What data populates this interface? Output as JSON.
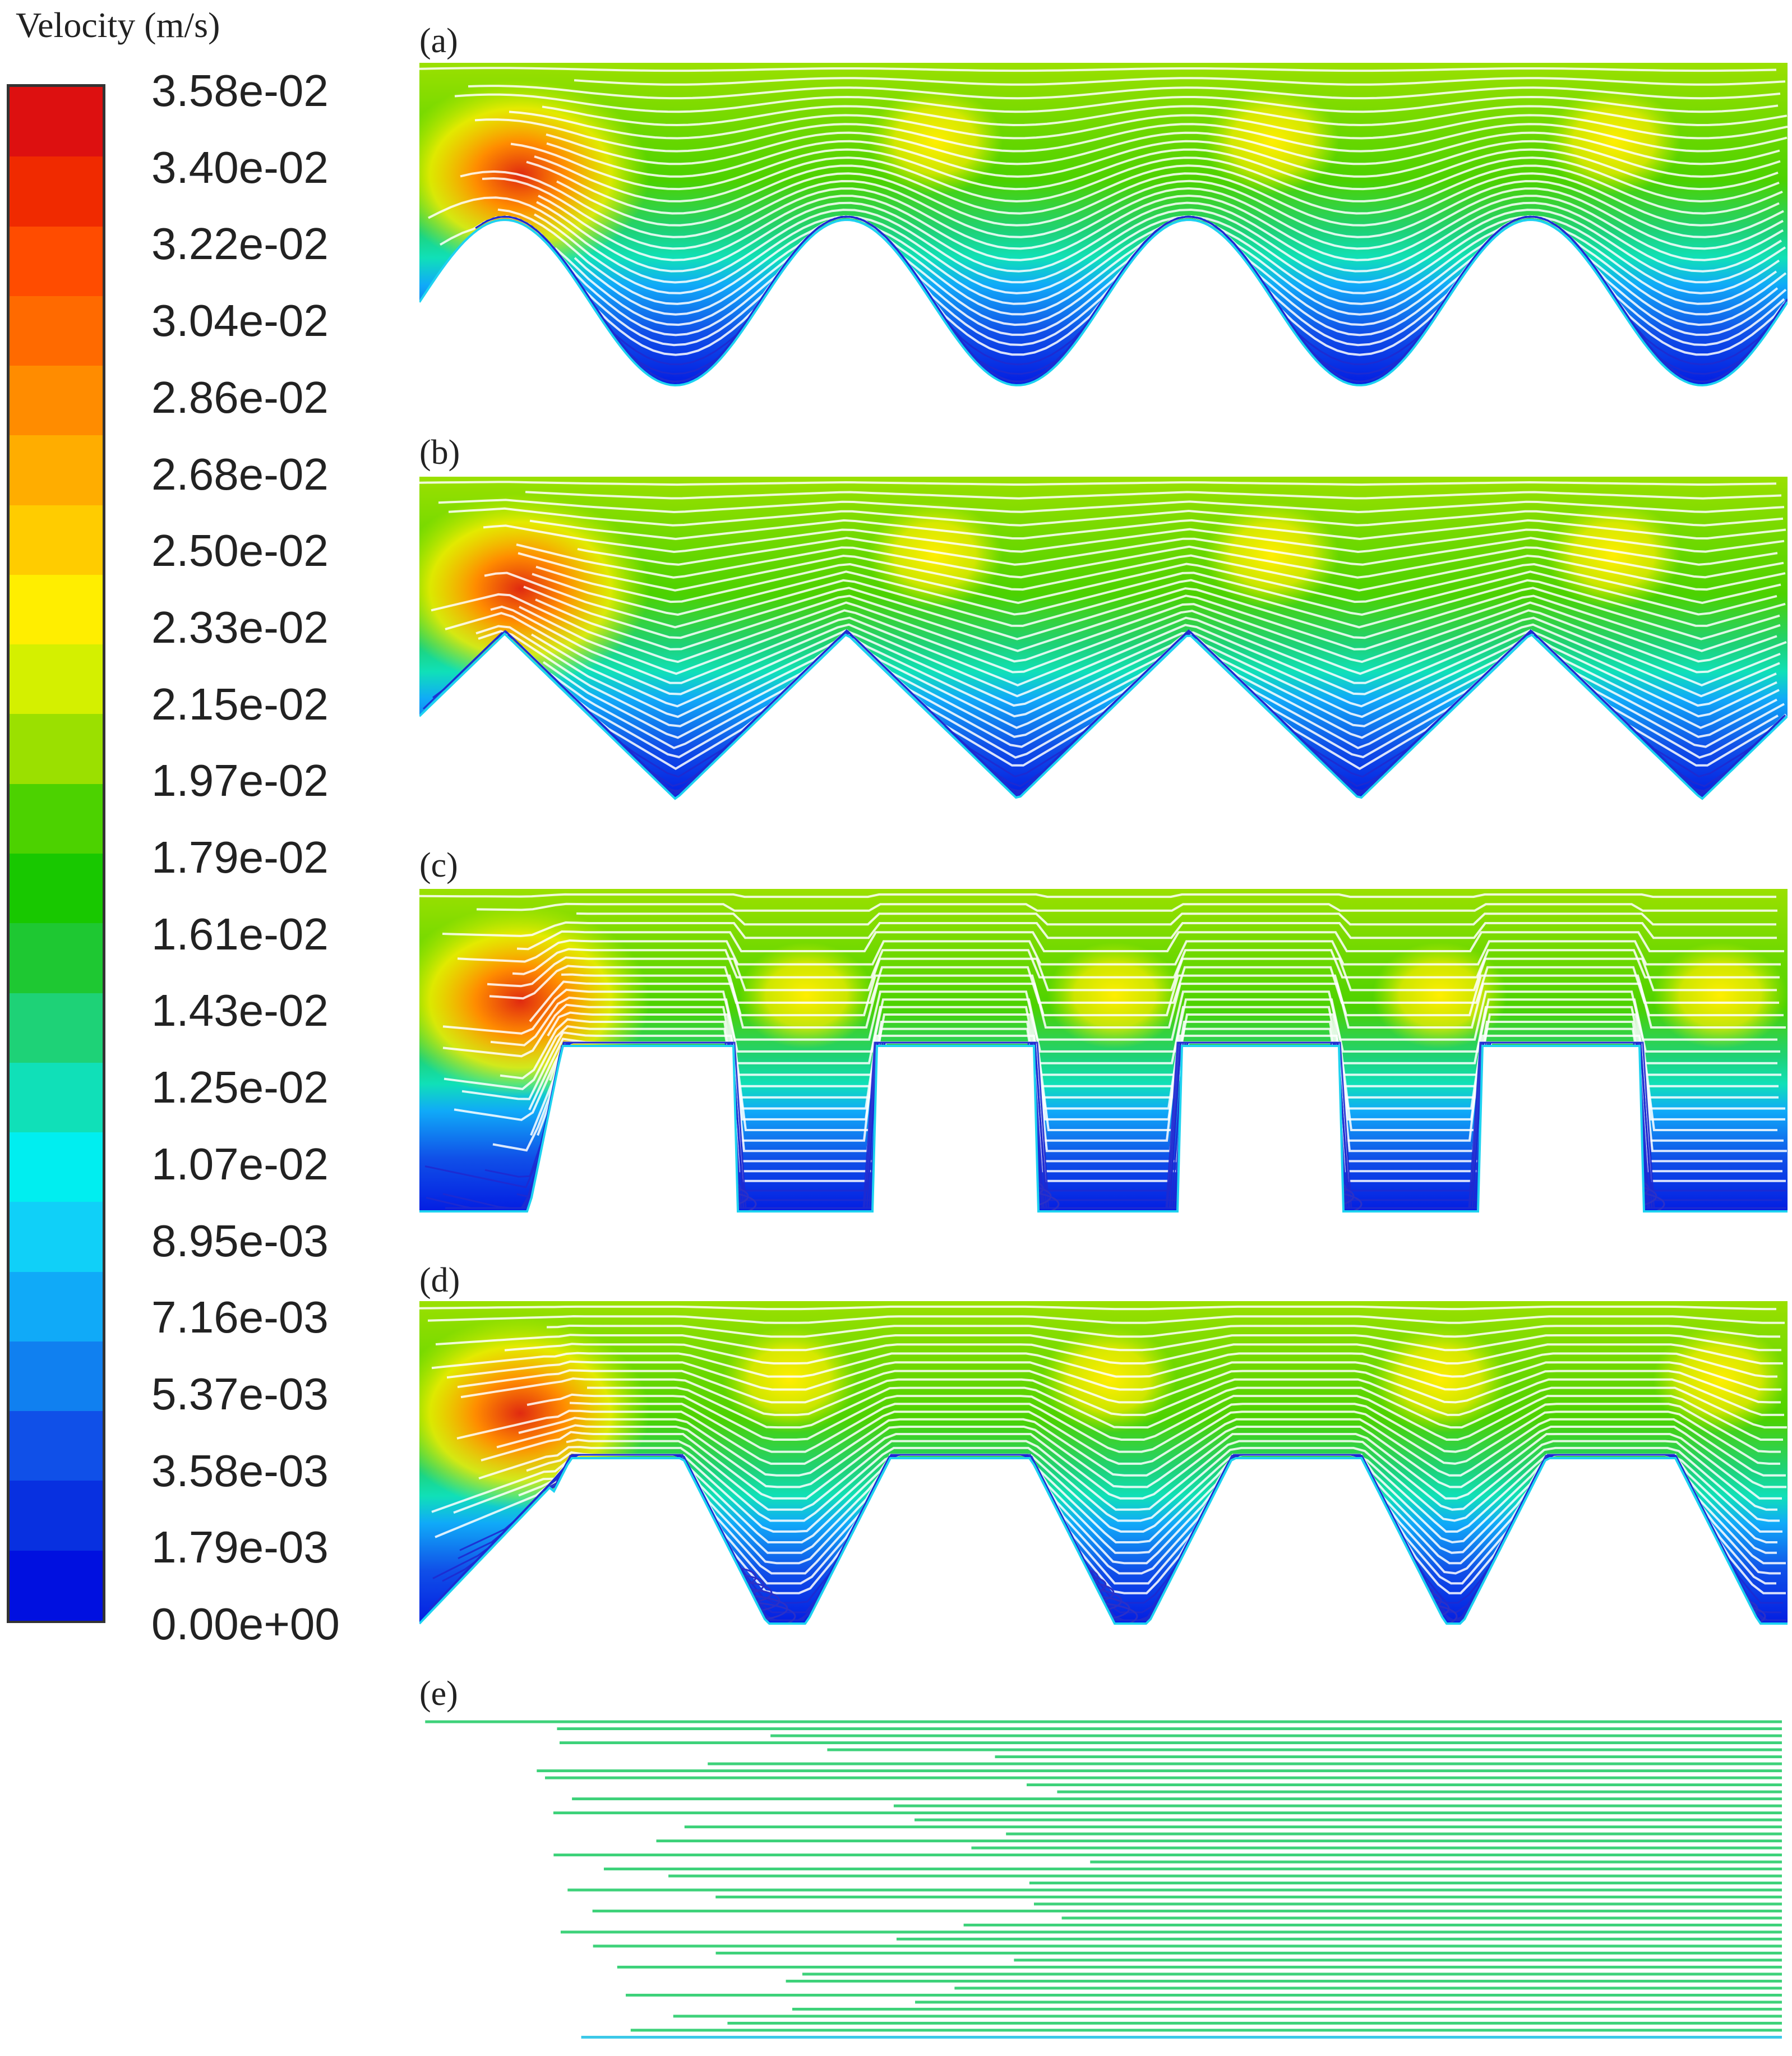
{
  "legend": {
    "title": "Velocity (m/s)",
    "ticks": [
      "3.58e-02",
      "3.40e-02",
      "3.22e-02",
      "3.04e-02",
      "2.86e-02",
      "2.68e-02",
      "2.50e-02",
      "2.33e-02",
      "2.15e-02",
      "1.97e-02",
      "1.79e-02",
      "1.61e-02",
      "1.43e-02",
      "1.25e-02",
      "1.07e-02",
      "8.95e-03",
      "7.16e-03",
      "5.37e-03",
      "3.58e-03",
      "1.79e-03",
      "0.00e+00"
    ],
    "colors": [
      "#dd1010",
      "#f02a00",
      "#ff4c00",
      "#ff6a00",
      "#ff8c00",
      "#ffad00",
      "#ffcc00",
      "#ffee00",
      "#d4f000",
      "#9be000",
      "#4cd200",
      "#18c800",
      "#1ec832",
      "#1ed277",
      "#10e0b8",
      "#00eef0",
      "#10d0f8",
      "#10aaf8",
      "#1080f0",
      "#1050e8",
      "#0830e0",
      "#0010e0"
    ]
  },
  "panels": [
    {
      "label": "(a)",
      "shape": "sinusoidal"
    },
    {
      "label": "(b)",
      "shape": "triangular"
    },
    {
      "label": "(c)",
      "shape": "rectangular"
    },
    {
      "label": "(d)",
      "shape": "trapezoidal"
    },
    {
      "label": "(e)",
      "shape": "flat"
    }
  ]
}
